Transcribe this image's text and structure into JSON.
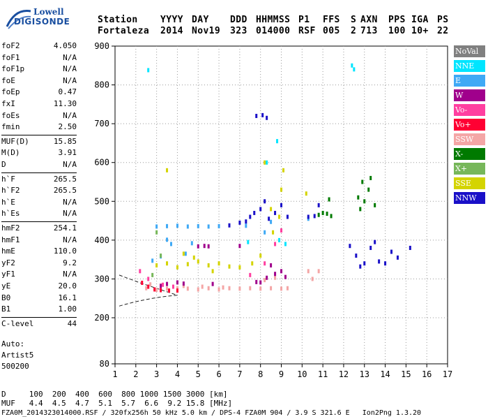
{
  "logo": {
    "line1": "Lowell",
    "line2": "DIGISONDE"
  },
  "header": {
    "labels": [
      "Station",
      "YYYY",
      "DAY",
      "DDD",
      "HHMMSS",
      "P1",
      "FFS",
      "S",
      "AXN",
      "PPS",
      "IGA",
      "PS"
    ],
    "values": [
      "Fortaleza",
      "2014",
      "Nov19",
      "323",
      "014000",
      "RSF",
      "005",
      "2",
      "713",
      "100",
      "10+",
      "22"
    ]
  },
  "params": {
    "group1": [
      {
        "label": "foF2",
        "value": "4.050"
      },
      {
        "label": "foF1",
        "value": "N/A"
      },
      {
        "label": "foF1p",
        "value": "N/A"
      },
      {
        "label": "foE",
        "value": "N/A"
      },
      {
        "label": "foEp",
        "value": "0.47"
      },
      {
        "label": "fxI",
        "value": "11.30"
      },
      {
        "label": "foEs",
        "value": "N/A"
      },
      {
        "label": "fmin",
        "value": "2.50"
      }
    ],
    "group2": [
      {
        "label": "MUF(D)",
        "value": "15.85"
      },
      {
        "label": "M(D)",
        "value": "3.91"
      },
      {
        "label": "D",
        "value": "N/A"
      }
    ],
    "group3": [
      {
        "label": "h`F",
        "value": "265.5"
      },
      {
        "label": "h`F2",
        "value": "265.5"
      },
      {
        "label": "h`E",
        "value": "N/A"
      },
      {
        "label": "h`Es",
        "value": "N/A"
      }
    ],
    "group4": [
      {
        "label": "hmF2",
        "value": "254.1"
      },
      {
        "label": "hmF1",
        "value": "N/A"
      },
      {
        "label": "hmE",
        "value": "110.0"
      },
      {
        "label": "yF2",
        "value": "9.2"
      },
      {
        "label": "yF1",
        "value": "N/A"
      },
      {
        "label": "yE",
        "value": "20.0"
      },
      {
        "label": "B0",
        "value": "16.1"
      },
      {
        "label": "B1",
        "value": "1.00"
      }
    ],
    "group5": [
      {
        "label": "C-level",
        "value": "44"
      }
    ]
  },
  "autoscale": {
    "line1": "Auto:",
    "line2": "Artist5",
    "line3": "500200"
  },
  "legend": [
    {
      "label": "NoVal",
      "color": "#808080"
    },
    {
      "label": "NNE",
      "color": "#00e5ff"
    },
    {
      "label": "E",
      "color": "#3fa9f5"
    },
    {
      "label": "W",
      "color": "#a0008c"
    },
    {
      "label": "Vo-",
      "color": "#ff3fa0"
    },
    {
      "label": "Vo+",
      "color": "#ff0033"
    },
    {
      "label": "SSW",
      "color": "#f4a6a6"
    },
    {
      "label": "X-",
      "color": "#007a00"
    },
    {
      "label": "X+",
      "color": "#77b75a"
    },
    {
      "label": "SSE",
      "color": "#d4d400"
    },
    {
      "label": "NNW",
      "color": "#1a10c8"
    }
  ],
  "chart_data": {
    "type": "scatter",
    "title": "",
    "xlabel": "",
    "ylabel": "",
    "xlim": [
      1,
      17
    ],
    "ylim": [
      80,
      900
    ],
    "xticks": [
      "1",
      "2",
      "3",
      "4",
      "5",
      "6",
      "7",
      "8",
      "9",
      "10",
      "11",
      "12",
      "13",
      "14",
      "15",
      "16",
      "17"
    ],
    "yticks": [
      "80",
      "200",
      "300",
      "400",
      "500",
      "600",
      "700",
      "800",
      "900"
    ],
    "grid": "dotted",
    "series": [
      {
        "name": "SSW",
        "color": "#f4a6a6",
        "points": [
          [
            2.5,
            276
          ],
          [
            3.0,
            272
          ],
          [
            3.5,
            275
          ],
          [
            4.0,
            276
          ],
          [
            4.5,
            275
          ],
          [
            5.0,
            273
          ],
          [
            5.5,
            276
          ],
          [
            6.0,
            273
          ],
          [
            6.5,
            276
          ],
          [
            7.0,
            275
          ],
          [
            7.5,
            276
          ],
          [
            8.0,
            275
          ],
          [
            8.5,
            276
          ],
          [
            9.0,
            275
          ],
          [
            9.3,
            276
          ],
          [
            10.3,
            320
          ],
          [
            10.5,
            300
          ],
          [
            10.8,
            320
          ],
          [
            2.7,
            286
          ],
          [
            3.2,
            283
          ],
          [
            4.3,
            282
          ],
          [
            5.2,
            280
          ],
          [
            6.2,
            278
          ],
          [
            8.2,
            297
          ],
          [
            8.7,
            303
          ]
        ]
      },
      {
        "name": "W",
        "color": "#a0008c",
        "points": [
          [
            3.2,
            282
          ],
          [
            3.5,
            287
          ],
          [
            4.0,
            291
          ],
          [
            4.3,
            288
          ],
          [
            5.0,
            384
          ],
          [
            5.3,
            385
          ],
          [
            5.7,
            287
          ],
          [
            7.0,
            385
          ],
          [
            8.0,
            291
          ],
          [
            8.3,
            303
          ],
          [
            8.7,
            313
          ],
          [
            9.0,
            320
          ],
          [
            8.5,
            335
          ],
          [
            9.2,
            305
          ],
          [
            7.8,
            292
          ],
          [
            5.5,
            384
          ]
        ]
      },
      {
        "name": "E",
        "color": "#3fa9f5",
        "points": [
          [
            3.0,
            435
          ],
          [
            3.5,
            436
          ],
          [
            4.0,
            437
          ],
          [
            4.5,
            435
          ],
          [
            5.0,
            436
          ],
          [
            5.5,
            435
          ],
          [
            6.0,
            436
          ],
          [
            3.7,
            390
          ],
          [
            4.7,
            392
          ],
          [
            3.2,
            358
          ],
          [
            4.4,
            365
          ],
          [
            2.8,
            347
          ],
          [
            3.5,
            401
          ],
          [
            8.2,
            420
          ],
          [
            8.5,
            447
          ],
          [
            7.3,
            437
          ],
          [
            10.3,
            455
          ]
        ]
      },
      {
        "name": "SSE",
        "color": "#d4d400",
        "points": [
          [
            3.0,
            335
          ],
          [
            3.5,
            340
          ],
          [
            4.0,
            330
          ],
          [
            4.5,
            338
          ],
          [
            5.0,
            345
          ],
          [
            5.5,
            335
          ],
          [
            6.0,
            340
          ],
          [
            6.5,
            332
          ],
          [
            7.0,
            330
          ],
          [
            8.0,
            360
          ],
          [
            8.5,
            480
          ],
          [
            9.0,
            530
          ],
          [
            8.2,
            600
          ],
          [
            3.5,
            580
          ],
          [
            4.3,
            365
          ],
          [
            4.8,
            355
          ],
          [
            5.7,
            320
          ],
          [
            7.6,
            340
          ],
          [
            8.9,
            460
          ],
          [
            9.1,
            580
          ],
          [
            8.6,
            420
          ],
          [
            10.2,
            520
          ]
        ]
      },
      {
        "name": "NNW",
        "color": "#1a10c8",
        "points": [
          [
            6.5,
            438
          ],
          [
            7.0,
            445
          ],
          [
            7.3,
            448
          ],
          [
            7.5,
            460
          ],
          [
            7.7,
            470
          ],
          [
            8.0,
            480
          ],
          [
            8.2,
            500
          ],
          [
            8.4,
            455
          ],
          [
            8.7,
            470
          ],
          [
            9.0,
            490
          ],
          [
            9.3,
            460
          ],
          [
            7.8,
            720
          ],
          [
            8.1,
            722
          ],
          [
            8.3,
            715
          ],
          [
            10.3,
            460
          ],
          [
            10.6,
            462
          ],
          [
            12.3,
            385
          ],
          [
            12.6,
            360
          ],
          [
            13.0,
            340
          ],
          [
            13.3,
            380
          ],
          [
            13.7,
            345
          ],
          [
            14.0,
            340
          ],
          [
            14.3,
            370
          ],
          [
            14.6,
            355
          ],
          [
            15.2,
            380
          ],
          [
            12.8,
            332
          ],
          [
            13.5,
            395
          ],
          [
            10.8,
            490
          ]
        ]
      },
      {
        "name": "X-",
        "color": "#007a00",
        "points": [
          [
            10.8,
            465
          ],
          [
            11.0,
            470
          ],
          [
            11.2,
            468
          ],
          [
            11.4,
            462
          ],
          [
            11.3,
            505
          ],
          [
            12.8,
            480
          ],
          [
            13.0,
            500
          ],
          [
            13.2,
            530
          ],
          [
            13.5,
            490
          ],
          [
            12.9,
            550
          ],
          [
            13.3,
            560
          ],
          [
            12.7,
            510
          ]
        ]
      },
      {
        "name": "NNE",
        "color": "#00e5ff",
        "points": [
          [
            12.4,
            850
          ],
          [
            12.5,
            840
          ],
          [
            2.6,
            838
          ],
          [
            9.2,
            390
          ],
          [
            8.9,
            400
          ],
          [
            7.4,
            395
          ],
          [
            8.3,
            600
          ],
          [
            8.8,
            655
          ]
        ]
      },
      {
        "name": "Vo-",
        "color": "#ff3fa0",
        "points": [
          [
            2.2,
            320
          ],
          [
            2.6,
            300
          ],
          [
            3.3,
            285
          ],
          [
            3.8,
            280
          ],
          [
            8.2,
            340
          ],
          [
            9.0,
            425
          ],
          [
            8.7,
            390
          ],
          [
            7.5,
            310
          ]
        ]
      },
      {
        "name": "Vo+",
        "color": "#ff0033",
        "points": [
          [
            2.3,
            290
          ],
          [
            2.6,
            280
          ],
          [
            2.9,
            273
          ],
          [
            3.2,
            271
          ],
          [
            3.6,
            270
          ],
          [
            4.0,
            270
          ]
        ]
      },
      {
        "name": "X+",
        "color": "#77b75a",
        "points": [
          [
            3.0,
            420
          ],
          [
            3.2,
            360
          ],
          [
            2.8,
            310
          ]
        ]
      }
    ]
  },
  "footer": {
    "line1": "D     100  200  400  600  800 1000 1500 3000 [km]",
    "line2": "MUF   4.4  4.5  4.7  5.1  5.7  6.6  9.2 15.8 [MHz]",
    "line3": "FZA0M_2014323014000.RSF / 320fx256h 50 kHz 5.0 km / DPS-4 FZA0M 904 / 3.9 S 321.6 E   Ion2Png 1.3.20"
  }
}
